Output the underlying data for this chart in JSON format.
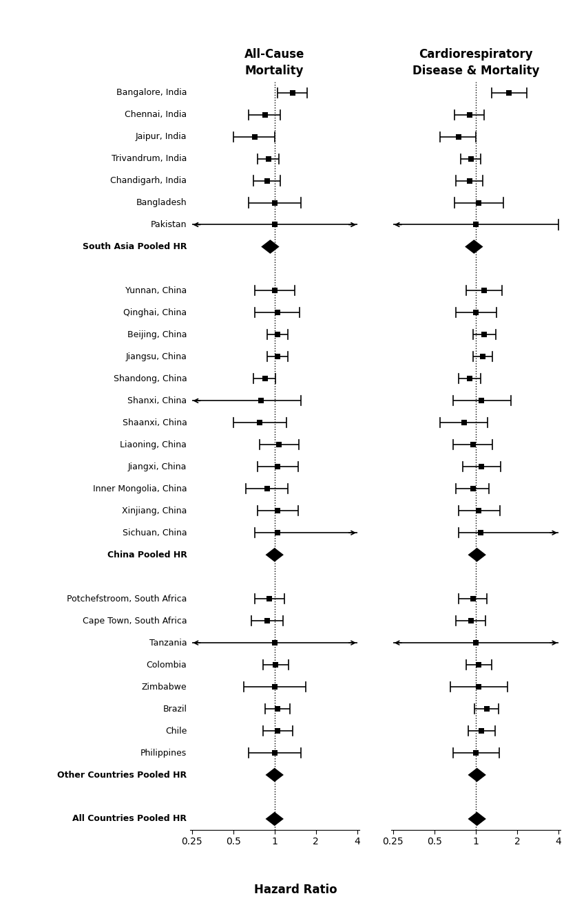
{
  "title_left": "All-Cause\nMortality",
  "title_right": "Cardiorespiratory\nDisease & Mortality",
  "xlabel": "Hazard Ratio",
  "xticks": [
    0.25,
    0.5,
    1,
    2,
    4
  ],
  "rows": [
    {
      "label": "Bangalore, India",
      "ac_hr": 1.35,
      "ac_lo": 1.05,
      "ac_hi": 1.72,
      "ac_alo": false,
      "ac_ahi": false,
      "cr_hr": 1.75,
      "cr_lo": 1.3,
      "cr_hi": 2.35,
      "cr_alo": false,
      "cr_ahi": false,
      "pooled": false
    },
    {
      "label": "Chennai, India",
      "ac_hr": 0.85,
      "ac_lo": 0.65,
      "ac_hi": 1.1,
      "ac_alo": false,
      "ac_ahi": false,
      "cr_hr": 0.9,
      "cr_lo": 0.7,
      "cr_hi": 1.15,
      "cr_alo": false,
      "cr_ahi": false,
      "pooled": false
    },
    {
      "label": "Jaipur, India",
      "ac_hr": 0.72,
      "ac_lo": 0.5,
      "ac_hi": 1.0,
      "ac_alo": false,
      "ac_ahi": false,
      "cr_hr": 0.75,
      "cr_lo": 0.55,
      "cr_hi": 1.0,
      "cr_alo": false,
      "cr_ahi": false,
      "pooled": false
    },
    {
      "label": "Trivandrum, India",
      "ac_hr": 0.9,
      "ac_lo": 0.75,
      "ac_hi": 1.08,
      "ac_alo": false,
      "ac_ahi": false,
      "cr_hr": 0.92,
      "cr_lo": 0.78,
      "cr_hi": 1.08,
      "cr_alo": false,
      "cr_ahi": false,
      "pooled": false
    },
    {
      "label": "Chandigarh, India",
      "ac_hr": 0.88,
      "ac_lo": 0.7,
      "ac_hi": 1.1,
      "ac_alo": false,
      "ac_ahi": false,
      "cr_hr": 0.9,
      "cr_lo": 0.72,
      "cr_hi": 1.12,
      "cr_alo": false,
      "cr_ahi": false,
      "pooled": false
    },
    {
      "label": "Bangladesh",
      "ac_hr": 1.0,
      "ac_lo": 0.65,
      "ac_hi": 1.55,
      "ac_alo": false,
      "ac_ahi": false,
      "cr_hr": 1.05,
      "cr_lo": 0.7,
      "cr_hi": 1.58,
      "cr_alo": false,
      "cr_ahi": false,
      "pooled": false
    },
    {
      "label": "Pakistan",
      "ac_hr": 1.0,
      "ac_lo": 0.25,
      "ac_hi": 4.0,
      "ac_alo": true,
      "ac_ahi": true,
      "cr_hr": 1.0,
      "cr_lo": 0.25,
      "cr_hi": 4.0,
      "cr_alo": true,
      "cr_ahi": false,
      "pooled": false
    },
    {
      "label": "South Asia Pooled HR",
      "ac_hr": 0.93,
      "ac_lo": null,
      "ac_hi": null,
      "ac_alo": false,
      "ac_ahi": false,
      "cr_hr": 0.97,
      "cr_lo": null,
      "cr_hi": null,
      "cr_alo": false,
      "cr_ahi": false,
      "pooled": true
    },
    {
      "label": "",
      "ac_hr": null,
      "ac_lo": null,
      "ac_hi": null,
      "ac_alo": false,
      "ac_ahi": false,
      "cr_hr": null,
      "cr_lo": null,
      "cr_hi": null,
      "cr_alo": false,
      "cr_ahi": false,
      "pooled": false
    },
    {
      "label": "Yunnan, China",
      "ac_hr": 1.0,
      "ac_lo": 0.72,
      "ac_hi": 1.4,
      "ac_alo": false,
      "ac_ahi": false,
      "cr_hr": 1.15,
      "cr_lo": 0.85,
      "cr_hi": 1.55,
      "cr_alo": false,
      "cr_ahi": false,
      "pooled": false
    },
    {
      "label": "Qinghai, China",
      "ac_hr": 1.05,
      "ac_lo": 0.72,
      "ac_hi": 1.52,
      "ac_alo": false,
      "ac_ahi": false,
      "cr_hr": 1.0,
      "cr_lo": 0.72,
      "cr_hi": 1.42,
      "cr_alo": false,
      "cr_ahi": false,
      "pooled": false
    },
    {
      "label": "Beijing, China",
      "ac_hr": 1.05,
      "ac_lo": 0.88,
      "ac_hi": 1.25,
      "ac_alo": false,
      "ac_ahi": false,
      "cr_hr": 1.15,
      "cr_lo": 0.95,
      "cr_hi": 1.4,
      "cr_alo": false,
      "cr_ahi": false,
      "pooled": false
    },
    {
      "label": "Jiangsu, China",
      "ac_hr": 1.05,
      "ac_lo": 0.88,
      "ac_hi": 1.25,
      "ac_alo": false,
      "ac_ahi": false,
      "cr_hr": 1.12,
      "cr_lo": 0.95,
      "cr_hi": 1.32,
      "cr_alo": false,
      "cr_ahi": false,
      "pooled": false
    },
    {
      "label": "Shandong, China",
      "ac_hr": 0.85,
      "ac_lo": 0.7,
      "ac_hi": 1.02,
      "ac_alo": false,
      "ac_ahi": false,
      "cr_hr": 0.9,
      "cr_lo": 0.75,
      "cr_hi": 1.08,
      "cr_alo": false,
      "cr_ahi": false,
      "pooled": false
    },
    {
      "label": "Shanxi, China",
      "ac_hr": 0.8,
      "ac_lo": 0.25,
      "ac_hi": 1.55,
      "ac_alo": true,
      "ac_ahi": false,
      "cr_hr": 1.1,
      "cr_lo": 0.68,
      "cr_hi": 1.8,
      "cr_alo": false,
      "cr_ahi": false,
      "pooled": false
    },
    {
      "label": "Shaanxi, China",
      "ac_hr": 0.78,
      "ac_lo": 0.5,
      "ac_hi": 1.22,
      "ac_alo": false,
      "ac_ahi": false,
      "cr_hr": 0.82,
      "cr_lo": 0.55,
      "cr_hi": 1.22,
      "cr_alo": false,
      "cr_ahi": false,
      "pooled": false
    },
    {
      "label": "Liaoning, China",
      "ac_hr": 1.08,
      "ac_lo": 0.78,
      "ac_hi": 1.5,
      "ac_alo": false,
      "ac_ahi": false,
      "cr_hr": 0.95,
      "cr_lo": 0.68,
      "cr_hi": 1.32,
      "cr_alo": false,
      "cr_ahi": false,
      "pooled": false
    },
    {
      "label": "Jiangxi, China",
      "ac_hr": 1.05,
      "ac_lo": 0.75,
      "ac_hi": 1.48,
      "ac_alo": false,
      "ac_ahi": false,
      "cr_hr": 1.1,
      "cr_lo": 0.8,
      "cr_hi": 1.52,
      "cr_alo": false,
      "cr_ahi": false,
      "pooled": false
    },
    {
      "label": "Inner Mongolia, China",
      "ac_hr": 0.88,
      "ac_lo": 0.62,
      "ac_hi": 1.25,
      "ac_alo": false,
      "ac_ahi": false,
      "cr_hr": 0.95,
      "cr_lo": 0.72,
      "cr_hi": 1.25,
      "cr_alo": false,
      "cr_ahi": false,
      "pooled": false
    },
    {
      "label": "Xinjiang, China",
      "ac_hr": 1.05,
      "ac_lo": 0.75,
      "ac_hi": 1.48,
      "ac_alo": false,
      "ac_ahi": false,
      "cr_hr": 1.05,
      "cr_lo": 0.75,
      "cr_hi": 1.5,
      "cr_alo": false,
      "cr_ahi": false,
      "pooled": false
    },
    {
      "label": "Sichuan, China",
      "ac_hr": 1.05,
      "ac_lo": 0.72,
      "ac_hi": 4.0,
      "ac_alo": false,
      "ac_ahi": true,
      "cr_hr": 1.08,
      "cr_lo": 0.75,
      "cr_hi": 4.0,
      "cr_alo": false,
      "cr_ahi": true,
      "pooled": false
    },
    {
      "label": "China Pooled HR",
      "ac_hr": 1.0,
      "ac_lo": null,
      "ac_hi": null,
      "ac_alo": false,
      "ac_ahi": false,
      "cr_hr": 1.02,
      "cr_lo": null,
      "cr_hi": null,
      "cr_alo": false,
      "cr_ahi": false,
      "pooled": true
    },
    {
      "label": "",
      "ac_hr": null,
      "ac_lo": null,
      "ac_hi": null,
      "ac_alo": false,
      "ac_ahi": false,
      "cr_hr": null,
      "cr_lo": null,
      "cr_hi": null,
      "cr_alo": false,
      "cr_ahi": false,
      "pooled": false
    },
    {
      "label": "Potchefstroom, South Africa",
      "ac_hr": 0.92,
      "ac_lo": 0.72,
      "ac_hi": 1.18,
      "ac_alo": false,
      "ac_ahi": false,
      "cr_hr": 0.95,
      "cr_lo": 0.75,
      "cr_hi": 1.2,
      "cr_alo": false,
      "cr_ahi": false,
      "pooled": false
    },
    {
      "label": "Cape Town, South Africa",
      "ac_hr": 0.88,
      "ac_lo": 0.68,
      "ac_hi": 1.15,
      "ac_alo": false,
      "ac_ahi": false,
      "cr_hr": 0.92,
      "cr_lo": 0.72,
      "cr_hi": 1.18,
      "cr_alo": false,
      "cr_ahi": false,
      "pooled": false
    },
    {
      "label": "Tanzania",
      "ac_hr": 1.0,
      "ac_lo": 0.25,
      "ac_hi": 4.0,
      "ac_alo": true,
      "ac_ahi": true,
      "cr_hr": 1.0,
      "cr_lo": 0.25,
      "cr_hi": 4.0,
      "cr_alo": true,
      "cr_ahi": true,
      "pooled": false
    },
    {
      "label": "Colombia",
      "ac_hr": 1.02,
      "ac_lo": 0.82,
      "ac_hi": 1.27,
      "ac_alo": false,
      "ac_ahi": false,
      "cr_hr": 1.05,
      "cr_lo": 0.85,
      "cr_hi": 1.3,
      "cr_alo": false,
      "cr_ahi": false,
      "pooled": false
    },
    {
      "label": "Zimbabwe",
      "ac_hr": 1.0,
      "ac_lo": 0.6,
      "ac_hi": 1.68,
      "ac_alo": false,
      "ac_ahi": false,
      "cr_hr": 1.05,
      "cr_lo": 0.65,
      "cr_hi": 1.7,
      "cr_alo": false,
      "cr_ahi": false,
      "pooled": false
    },
    {
      "label": "Brazil",
      "ac_hr": 1.05,
      "ac_lo": 0.85,
      "ac_hi": 1.3,
      "ac_alo": false,
      "ac_ahi": false,
      "cr_hr": 1.2,
      "cr_lo": 0.98,
      "cr_hi": 1.47,
      "cr_alo": false,
      "cr_ahi": false,
      "pooled": false
    },
    {
      "label": "Chile",
      "ac_hr": 1.05,
      "ac_lo": 0.82,
      "ac_hi": 1.35,
      "ac_alo": false,
      "ac_ahi": false,
      "cr_hr": 1.1,
      "cr_lo": 0.88,
      "cr_hi": 1.38,
      "cr_alo": false,
      "cr_ahi": false,
      "pooled": false
    },
    {
      "label": "Philippines",
      "ac_hr": 1.0,
      "ac_lo": 0.65,
      "ac_hi": 1.55,
      "ac_alo": false,
      "ac_ahi": false,
      "cr_hr": 1.0,
      "cr_lo": 0.68,
      "cr_hi": 1.48,
      "cr_alo": false,
      "cr_ahi": false,
      "pooled": false
    },
    {
      "label": "Other Countries Pooled HR",
      "ac_hr": 1.0,
      "ac_lo": null,
      "ac_hi": null,
      "ac_alo": false,
      "ac_ahi": false,
      "cr_hr": 1.02,
      "cr_lo": null,
      "cr_hi": null,
      "cr_alo": false,
      "cr_ahi": false,
      "pooled": true
    },
    {
      "label": "",
      "ac_hr": null,
      "ac_lo": null,
      "ac_hi": null,
      "ac_alo": false,
      "ac_ahi": false,
      "cr_hr": null,
      "cr_lo": null,
      "cr_hi": null,
      "cr_alo": false,
      "cr_ahi": false,
      "pooled": false
    },
    {
      "label": "All Countries Pooled HR",
      "ac_hr": 1.0,
      "ac_lo": null,
      "ac_hi": null,
      "ac_alo": false,
      "ac_ahi": false,
      "cr_hr": 1.02,
      "cr_lo": null,
      "cr_hi": null,
      "cr_alo": false,
      "cr_ahi": false,
      "pooled": true
    }
  ]
}
